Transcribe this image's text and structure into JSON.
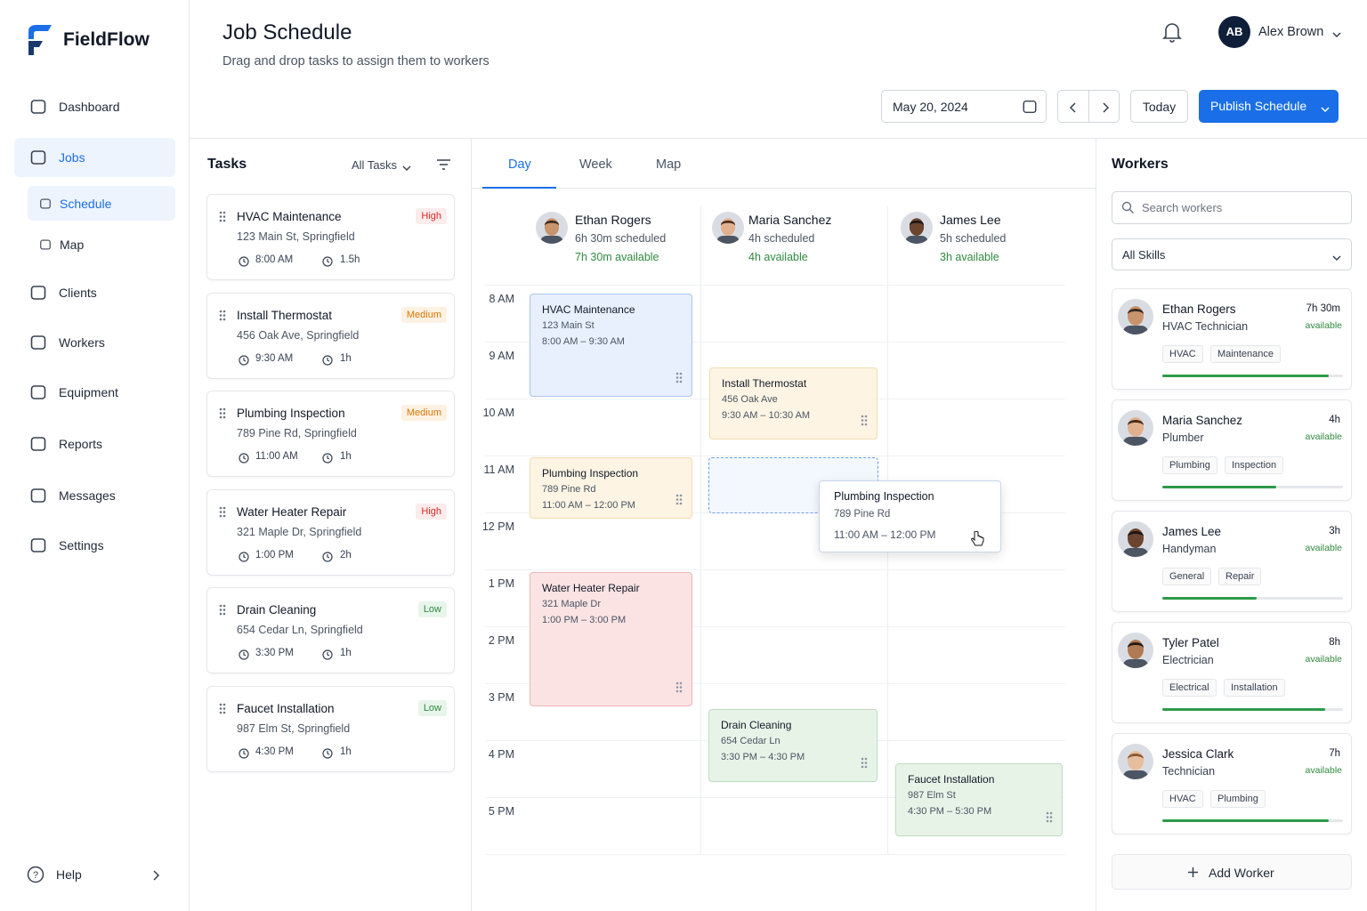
{
  "sidebar": {
    "brand": "FieldFlow",
    "nav": [
      "Dashboard",
      "Jobs",
      "Clients",
      "Workers",
      "Equipment",
      "Reports",
      "Messages",
      "Settings"
    ],
    "subnav": [
      "Schedule",
      "Map"
    ],
    "help": "Help"
  },
  "header": {
    "title": "Job Schedule",
    "subtitle": "Drag and drop tasks to assign them to workers",
    "user_initials": "AB",
    "user_name": "Alex Brown",
    "date": "May 20, 2024",
    "today": "Today",
    "publish": "Publish Schedule"
  },
  "tasks": {
    "title": "Tasks",
    "filter": "All Tasks",
    "items": [
      {
        "name": "HVAC Maintenance",
        "address": "123 Main St, Springfield",
        "priority": "High",
        "time": "8:00 AM",
        "duration": "1.5h"
      },
      {
        "name": "Install Thermostat",
        "address": "456 Oak Ave, Springfield",
        "priority": "Medium",
        "time": "9:30 AM",
        "duration": "1h"
      },
      {
        "name": "Plumbing Inspection",
        "address": "789 Pine Rd, Springfield",
        "priority": "Medium",
        "time": "11:00 AM",
        "duration": "1h"
      },
      {
        "name": "Water Heater Repair",
        "address": "321 Maple Dr, Springfield",
        "priority": "High",
        "time": "1:00 PM",
        "duration": "2h"
      },
      {
        "name": "Drain Cleaning",
        "address": "654 Cedar Ln, Springfield",
        "priority": "Low",
        "time": "3:30 PM",
        "duration": "1h"
      },
      {
        "name": "Faucet Installation",
        "address": "987 Elm St, Springfield",
        "priority": "Low",
        "time": "4:30 PM",
        "duration": "1h"
      }
    ]
  },
  "schedule": {
    "tabs": [
      "Day",
      "Week",
      "Map"
    ],
    "workers": [
      {
        "name": "Ethan Rogers",
        "scheduled": "6h 30m scheduled",
        "available": "7h 30m available"
      },
      {
        "name": "Maria Sanchez",
        "scheduled": "4h scheduled",
        "available": "4h available"
      },
      {
        "name": "James Lee",
        "scheduled": "5h scheduled",
        "available": "3h available"
      }
    ],
    "hours": [
      "8 AM",
      "9 AM",
      "10 AM",
      "11 AM",
      "12 PM",
      "1 PM",
      "2 PM",
      "3 PM",
      "4 PM",
      "5 PM"
    ],
    "events": [
      {
        "title": "HVAC Maintenance",
        "address": "123 Main St",
        "time": "8:00 AM – 9:30 AM"
      },
      {
        "title": "Install Thermostat",
        "address": "456 Oak Ave",
        "time": "9:30 AM – 10:30 AM"
      },
      {
        "title": "Plumbing Inspection",
        "address": "789 Pine Rd",
        "time": "11:00 AM – 12:00 PM"
      },
      {
        "title": "Water Heater Repair",
        "address": "321 Maple Dr",
        "time": "1:00 PM – 3:00 PM"
      },
      {
        "title": "Drain Cleaning",
        "address": "654 Cedar Ln",
        "time": "3:30 PM – 4:30 PM"
      },
      {
        "title": "Faucet Installation",
        "address": "987 Elm St",
        "time": "4:30 PM – 5:30 PM"
      }
    ],
    "dragging": {
      "title": "Plumbing Inspection",
      "address": "789 Pine Rd",
      "time": "11:00 AM – 12:00 PM"
    }
  },
  "workers_panel": {
    "title": "Workers",
    "search": "Search workers",
    "skills": "All Skills",
    "add": "Add Worker",
    "items": [
      {
        "name": "Ethan Rogers",
        "role": "HVAC Technician",
        "hours": "7h 30m",
        "status": "available",
        "tags": [
          "HVAC",
          "Maintenance"
        ]
      },
      {
        "name": "Maria Sanchez",
        "role": "Plumber",
        "hours": "4h",
        "status": "available",
        "tags": [
          "Plumbing",
          "Inspection"
        ]
      },
      {
        "name": "James Lee",
        "role": "Handyman",
        "hours": "3h",
        "status": "available",
        "tags": [
          "General",
          "Repair"
        ]
      },
      {
        "name": "Tyler Patel",
        "role": "Electrician",
        "hours": "8h",
        "status": "available",
        "tags": [
          "Electrical",
          "Installation"
        ]
      },
      {
        "name": "Jessica Clark",
        "role": "Technician",
        "hours": "7h",
        "status": "available",
        "tags": [
          "HVAC",
          "Plumbing"
        ]
      }
    ]
  }
}
